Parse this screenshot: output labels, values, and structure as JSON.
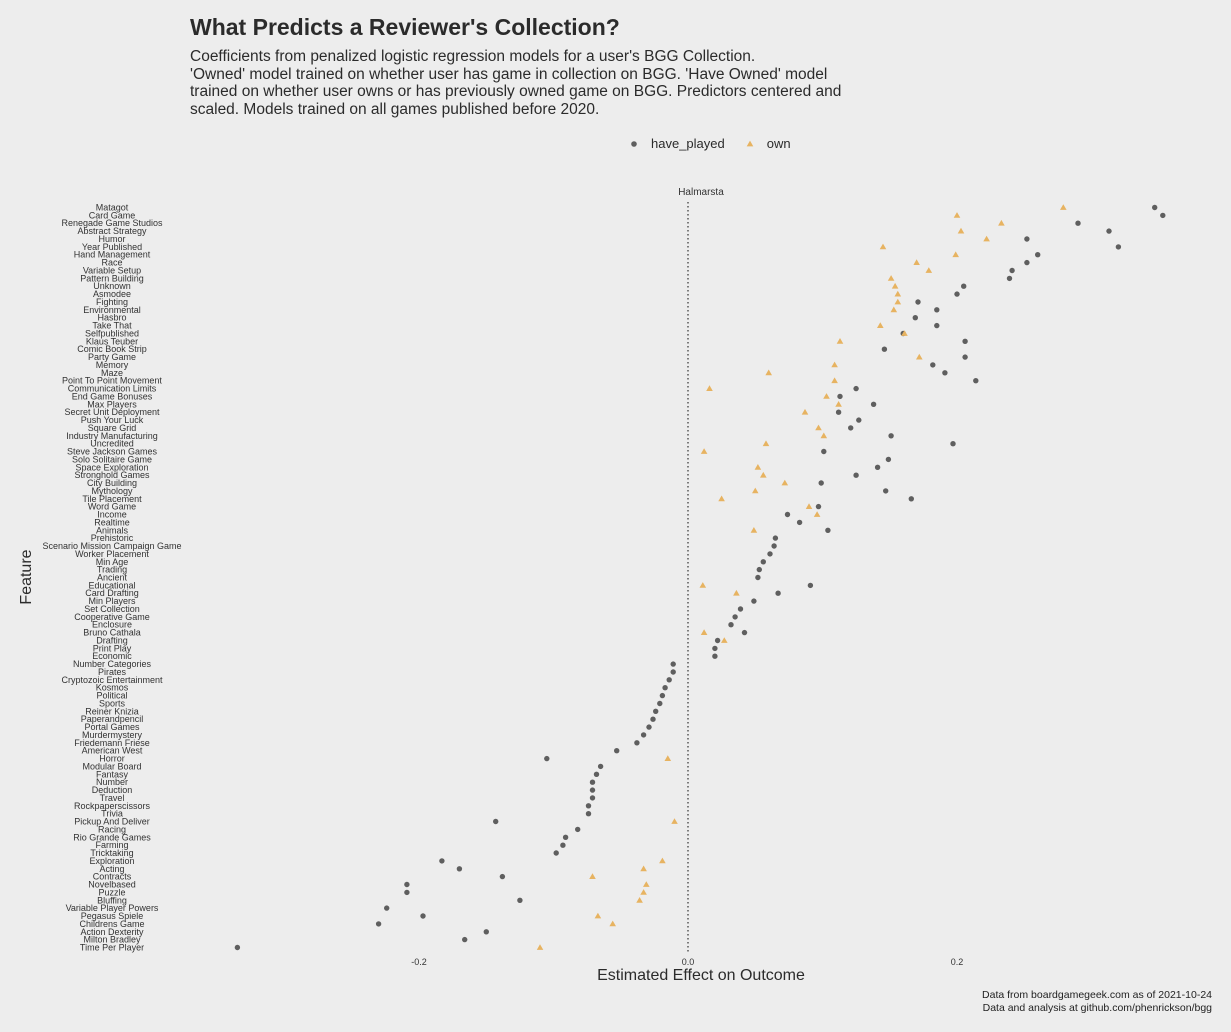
{
  "chart_data": {
    "type": "scatter",
    "title": "What Predicts a Reviewer's Collection?",
    "subtitle_lines": [
      "Coefficients from penalized logistic regression models for a user's BGG Collection.",
      "'Owned' model trained on whether user has game in collection on BGG. 'Have Owned' model",
      "trained on whether user owns or has previously owned game on BGG. Predictors centered and",
      "scaled. Models trained on all games published before 2020."
    ],
    "xlabel": "Estimated Effect on Outcome",
    "ylabel": "Feature",
    "xlim": [
      -0.34,
      0.38
    ],
    "x_ticks": [
      {
        "value": -0.2,
        "label": "-0.2"
      },
      {
        "value": 0.0,
        "label": "0.0"
      },
      {
        "value": 0.2,
        "label": "0.2"
      }
    ],
    "reference_line": {
      "x": 0.0,
      "label": "Halmarsta"
    },
    "grid": false,
    "legend_position": "top",
    "colors": {
      "have_played": "#5f5f5f",
      "own": "#e7b361"
    },
    "categories": [
      "Matagot",
      "Card Game",
      "Renegade Game Studios",
      "Abstract Strategy",
      "Humor",
      "Year Published",
      "Hand Management",
      "Race",
      "Variable Setup",
      "Pattern Building",
      "Unknown",
      "Asmodee",
      "Fighting",
      "Environmental",
      "Hasbro",
      "Take That",
      "Selfpublished",
      "Klaus Teuber",
      "Comic Book Strip",
      "Party Game",
      "Memory",
      "Maze",
      "Point To Point Movement",
      "Communication Limits",
      "End Game Bonuses",
      "Max Players",
      "Secret Unit Deployment",
      "Push Your Luck",
      "Square Grid",
      "Industry Manufacturing",
      "Uncredited",
      "Steve Jackson Games",
      "Solo Solitaire Game",
      "Space Exploration",
      "Stronghold Games",
      "City Building",
      "Mythology",
      "Tile Placement",
      "Word Game",
      "Income",
      "Realtime",
      "Animals",
      "Prehistoric",
      "Scenario Mission Campaign Game",
      "Worker Placement",
      "Min Age",
      "Trading",
      "Ancient",
      "Educational",
      "Card Drafting",
      "Min Players",
      "Set Collection",
      "Cooperative Game",
      "Enclosure",
      "Bruno Cathala",
      "Drafting",
      "Print Play",
      "Economic",
      "Number Categories",
      "Pirates",
      "Cryptozoic Entertainment",
      "Kosmos",
      "Political",
      "Sports",
      "Reiner Knizia",
      "Paperandpencil",
      "Portal Games",
      "Murdermystery",
      "Friedemann Friese",
      "American West",
      "Horror",
      "Modular Board",
      "Fantasy",
      "Number",
      "Deduction",
      "Travel",
      "Rockpaperscissors",
      "Trivia",
      "Pickup And Deliver",
      "Racing",
      "Rio Grande Games",
      "Farming",
      "Tricktaking",
      "Exploration",
      "Acting",
      "Contracts",
      "Novelbased",
      "Puzzle",
      "Bluffing",
      "Variable Player Powers",
      "Pegasus Spiele",
      "Childrens Game",
      "Action Dexterity",
      "Milton Bradley",
      "Time Per Player"
    ],
    "series": [
      {
        "name": "have_played",
        "marker": "circle",
        "values": [
          0.347,
          0.353,
          0.29,
          0.313,
          0.252,
          0.32,
          0.26,
          0.252,
          0.241,
          0.239,
          0.205,
          0.2,
          0.171,
          0.185,
          0.169,
          0.185,
          0.16,
          0.206,
          0.146,
          0.206,
          0.182,
          0.191,
          0.214,
          0.125,
          0.113,
          0.138,
          0.112,
          0.127,
          0.121,
          0.151,
          0.197,
          0.101,
          0.149,
          0.141,
          0.125,
          0.099,
          0.147,
          0.166,
          0.097,
          0.074,
          0.083,
          0.104,
          0.065,
          0.064,
          0.061,
          0.056,
          0.053,
          0.052,
          0.091,
          0.067,
          0.049,
          0.039,
          0.035,
          0.032,
          0.042,
          0.022,
          0.02,
          0.02,
          -0.011,
          -0.011,
          -0.014,
          -0.017,
          -0.019,
          -0.021,
          -0.024,
          -0.026,
          -0.029,
          -0.033,
          -0.038,
          -0.053,
          -0.105,
          -0.065,
          -0.068,
          -0.071,
          -0.071,
          -0.071,
          -0.074,
          -0.074,
          -0.143,
          -0.082,
          -0.091,
          -0.093,
          -0.098,
          -0.183,
          -0.17,
          -0.138,
          -0.209,
          -0.209,
          -0.125,
          -0.224,
          -0.197,
          -0.23,
          -0.15,
          -0.166,
          -0.335
        ]
      },
      {
        "name": "own",
        "marker": "triangle",
        "values": [
          0.279,
          0.2,
          0.233,
          0.203,
          0.222,
          0.145,
          0.199,
          0.17,
          0.179,
          0.151,
          0.154,
          0.156,
          0.156,
          0.153,
          null,
          0.143,
          0.161,
          0.113,
          null,
          0.172,
          0.109,
          0.06,
          0.109,
          0.016,
          0.103,
          0.112,
          0.087,
          null,
          0.097,
          0.101,
          0.058,
          0.012,
          null,
          0.052,
          0.056,
          0.072,
          0.05,
          0.025,
          0.09,
          0.096,
          null,
          0.049,
          null,
          null,
          null,
          null,
          null,
          null,
          0.011,
          0.036,
          null,
          null,
          null,
          null,
          0.012,
          0.027,
          null,
          null,
          null,
          null,
          null,
          null,
          null,
          null,
          null,
          null,
          null,
          null,
          null,
          null,
          -0.015,
          null,
          null,
          null,
          null,
          null,
          null,
          null,
          -0.01,
          null,
          null,
          null,
          null,
          -0.019,
          -0.033,
          -0.071,
          -0.031,
          -0.033,
          -0.036,
          null,
          -0.067,
          -0.056,
          null,
          null,
          -0.11
        ]
      }
    ]
  },
  "caption_lines": [
    "Data from boardgamegeek.com as of 2021-10-24",
    "Data and analysis at github.com/phenrickson/bgg"
  ]
}
